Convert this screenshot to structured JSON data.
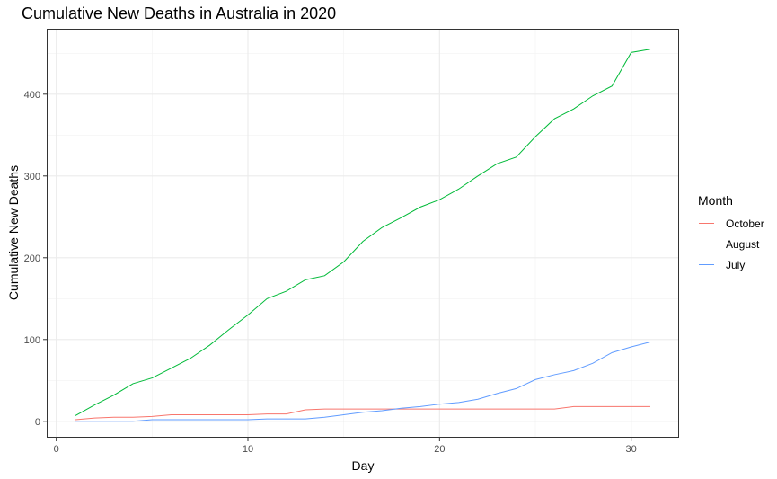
{
  "chart_data": {
    "type": "line",
    "title": "Cumulative New Deaths in Australia in 2020",
    "xlabel": "Day",
    "ylabel": "Cumulative New Deaths",
    "xlim": [
      -0.5,
      32.5
    ],
    "ylim": [
      -20,
      480
    ],
    "x_ticks": [
      0,
      10,
      20,
      30
    ],
    "y_ticks": [
      0,
      100,
      200,
      300,
      400
    ],
    "grid": true,
    "legend_title": "Month",
    "legend_position": "right",
    "x": [
      1,
      2,
      3,
      4,
      5,
      6,
      7,
      8,
      9,
      10,
      11,
      12,
      13,
      14,
      15,
      16,
      17,
      18,
      19,
      20,
      21,
      22,
      23,
      24,
      25,
      26,
      27,
      28,
      29,
      30,
      31
    ],
    "series": [
      {
        "name": "October",
        "color": "#F8766D",
        "values": [
          2,
          4,
          5,
          5,
          6,
          8,
          8,
          8,
          8,
          8,
          9,
          9,
          14,
          15,
          15,
          15,
          15,
          15,
          15,
          15,
          15,
          15,
          15,
          15,
          15,
          15,
          18,
          18,
          18,
          18,
          18
        ]
      },
      {
        "name": "August",
        "color": "#00BA38",
        "values": [
          7,
          20,
          32,
          46,
          53,
          65,
          77,
          93,
          112,
          130,
          150,
          159,
          173,
          178,
          195,
          220,
          237,
          249,
          262,
          271,
          284,
          300,
          315,
          323,
          348,
          370,
          382,
          398,
          410,
          451,
          455
        ]
      },
      {
        "name": "July",
        "color": "#619CFF",
        "values": [
          0,
          0,
          0,
          0,
          2,
          2,
          2,
          2,
          2,
          2,
          3,
          3,
          3,
          5,
          8,
          11,
          13,
          16,
          18,
          21,
          23,
          27,
          34,
          40,
          51,
          57,
          62,
          71,
          84,
          91,
          97
        ]
      }
    ]
  }
}
